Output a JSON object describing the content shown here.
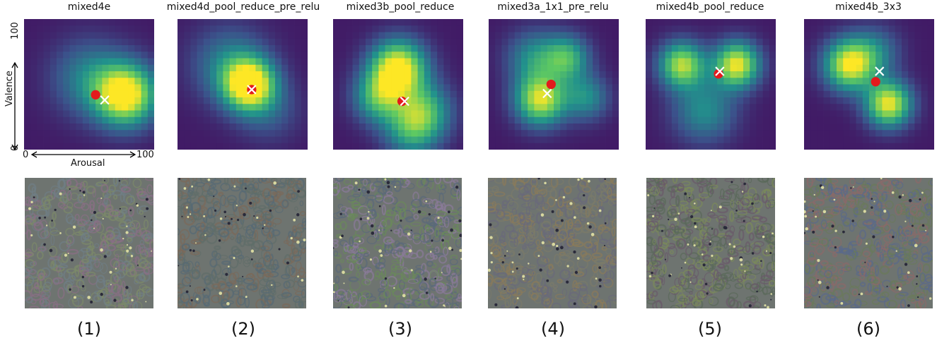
{
  "panels": [
    {
      "title": "mixed4e",
      "label": "(1)",
      "pred": [
        55,
        42
      ],
      "gt": [
        62,
        38
      ],
      "blobs": [
        [
          78,
          42,
          24,
          1.0
        ],
        [
          50,
          55,
          30,
          0.35
        ]
      ],
      "tex": [
        "#7c8a6a",
        "#6f7f86",
        "#8a6f86"
      ]
    },
    {
      "title": "mixed4d_pool_reduce_pre_relu",
      "label": "(2)",
      "pred": [
        57,
        46
      ],
      "gt": [
        57,
        46
      ],
      "blobs": [
        [
          55,
          50,
          20,
          1.0
        ],
        [
          40,
          65,
          30,
          0.35
        ],
        [
          70,
          30,
          25,
          0.2
        ]
      ],
      "tex": [
        "#5f6e6a",
        "#7a6a5a",
        "#556a75"
      ]
    },
    {
      "title": "mixed3b_pool_reduce",
      "label": "(3)",
      "pred": [
        53,
        37
      ],
      "gt": [
        55,
        37
      ],
      "blobs": [
        [
          50,
          62,
          22,
          1.0
        ],
        [
          35,
          40,
          20,
          0.55
        ],
        [
          70,
          30,
          22,
          0.5
        ],
        [
          60,
          15,
          22,
          0.45
        ]
      ],
      "tex": [
        "#6a8a5a",
        "#8a7a9a",
        "#5a6a7a"
      ]
    },
    {
      "title": "mixed3a_1x1_pre_relu",
      "label": "(4)",
      "pred": [
        48,
        50
      ],
      "gt": [
        45,
        43
      ],
      "blobs": [
        [
          40,
          38,
          20,
          0.85
        ],
        [
          60,
          70,
          18,
          0.55
        ],
        [
          35,
          70,
          22,
          0.4
        ],
        [
          75,
          40,
          18,
          0.4
        ]
      ],
      "tex": [
        "#7a7a6a",
        "#6a6a7a",
        "#8a7a5a"
      ]
    },
    {
      "title": "mixed4b_pool_reduce",
      "label": "(5)",
      "pred": [
        56,
        58
      ],
      "gt": [
        57,
        60
      ],
      "blobs": [
        [
          70,
          65,
          18,
          0.9
        ],
        [
          28,
          65,
          18,
          0.8
        ],
        [
          45,
          30,
          25,
          0.4
        ]
      ],
      "tex": [
        "#5a6a5a",
        "#7a8a5a",
        "#6a5a6a"
      ]
    },
    {
      "title": "mixed4b_3x3",
      "label": "(6)",
      "pred": [
        55,
        52
      ],
      "gt": [
        58,
        60
      ],
      "blobs": [
        [
          35,
          65,
          20,
          0.9
        ],
        [
          65,
          35,
          18,
          0.9
        ],
        [
          55,
          75,
          20,
          0.3
        ]
      ],
      "tex": [
        "#6a7a5a",
        "#5a6a8a",
        "#8a6a6a"
      ]
    }
  ],
  "axes": {
    "valence": "Valence",
    "arousal": "Arousal",
    "zero_x": "0",
    "hundred_x": "100",
    "zero_y": "0",
    "hundred_y": "100"
  },
  "colors": {
    "pred": "#e31a1c",
    "gt": "#ffffff"
  }
}
